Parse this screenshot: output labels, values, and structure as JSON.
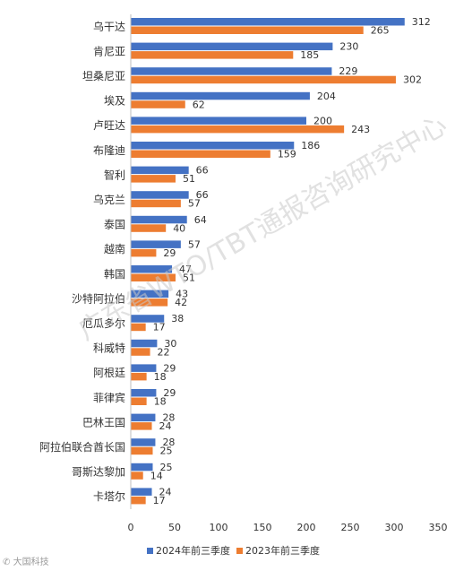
{
  "chart_data": {
    "type": "bar",
    "orientation": "horizontal",
    "categories": [
      "乌干达",
      "肯尼亚",
      "坦桑尼亚",
      "埃及",
      "卢旺达",
      "布隆迪",
      "智利",
      "乌克兰",
      "泰国",
      "越南",
      "韩国",
      "沙特阿拉伯",
      "厄瓜多尔",
      "科威特",
      "阿根廷",
      "菲律宾",
      "巴林王国",
      "阿拉伯联合酋长国",
      "哥斯达黎加",
      "卡塔尔"
    ],
    "series": [
      {
        "name": "2024年前三季度",
        "color": "#4472c4",
        "values": [
          312,
          230,
          229,
          204,
          200,
          186,
          66,
          66,
          64,
          57,
          47,
          43,
          38,
          30,
          29,
          29,
          28,
          28,
          25,
          24
        ]
      },
      {
        "name": "2023年前三季度",
        "color": "#ed7d31",
        "values": [
          265,
          185,
          302,
          62,
          243,
          159,
          51,
          57,
          40,
          29,
          51,
          42,
          17,
          22,
          18,
          18,
          24,
          25,
          14,
          17
        ]
      }
    ],
    "xlim": [
      0,
      350
    ],
    "xticks": [
      "0",
      "50",
      "100",
      "150",
      "200",
      "250",
      "300",
      "350"
    ],
    "grid": false,
    "legend_position": "bottom"
  },
  "watermark": "广东省WTO/TBT通报咨询研究中心",
  "wechat_mark": "大国科技"
}
